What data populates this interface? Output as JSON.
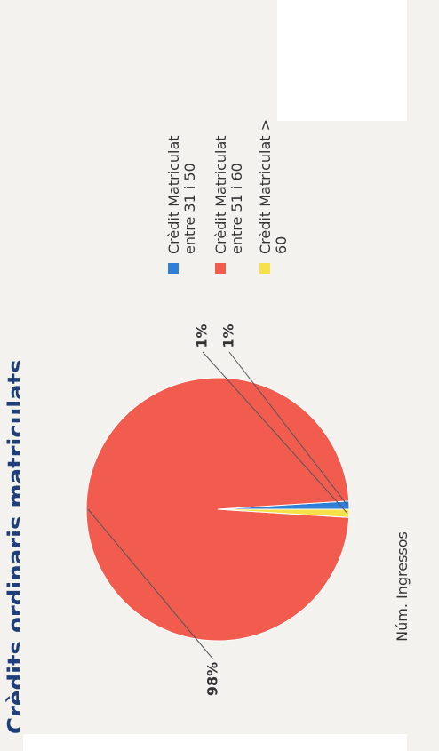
{
  "page": {
    "title": "Crèdits ordinaris matriculats"
  },
  "chart_data": {
    "type": "pie",
    "xlabel": "Núm. Ingressos",
    "slices": [
      {
        "name": "Crèdit Matriculat entre 31 i 50",
        "lines": [
          "Crèdit Matriculat",
          "entre  31 i 50"
        ],
        "value": 1,
        "label": "1%",
        "color": "#2f7ed8"
      },
      {
        "name": "Crèdit Matriculat entre 51 i 60",
        "lines": [
          "Crèdit Matriculat",
          "entre  51 i 60"
        ],
        "value": 98,
        "label": "98%",
        "color": "#f15c4f"
      },
      {
        "name": "Crèdit Matriculat > 60",
        "lines": [
          "Crèdit Matriculat >",
          "60"
        ],
        "value": 1,
        "label": "1%",
        "color": "#f7e14b"
      }
    ]
  }
}
